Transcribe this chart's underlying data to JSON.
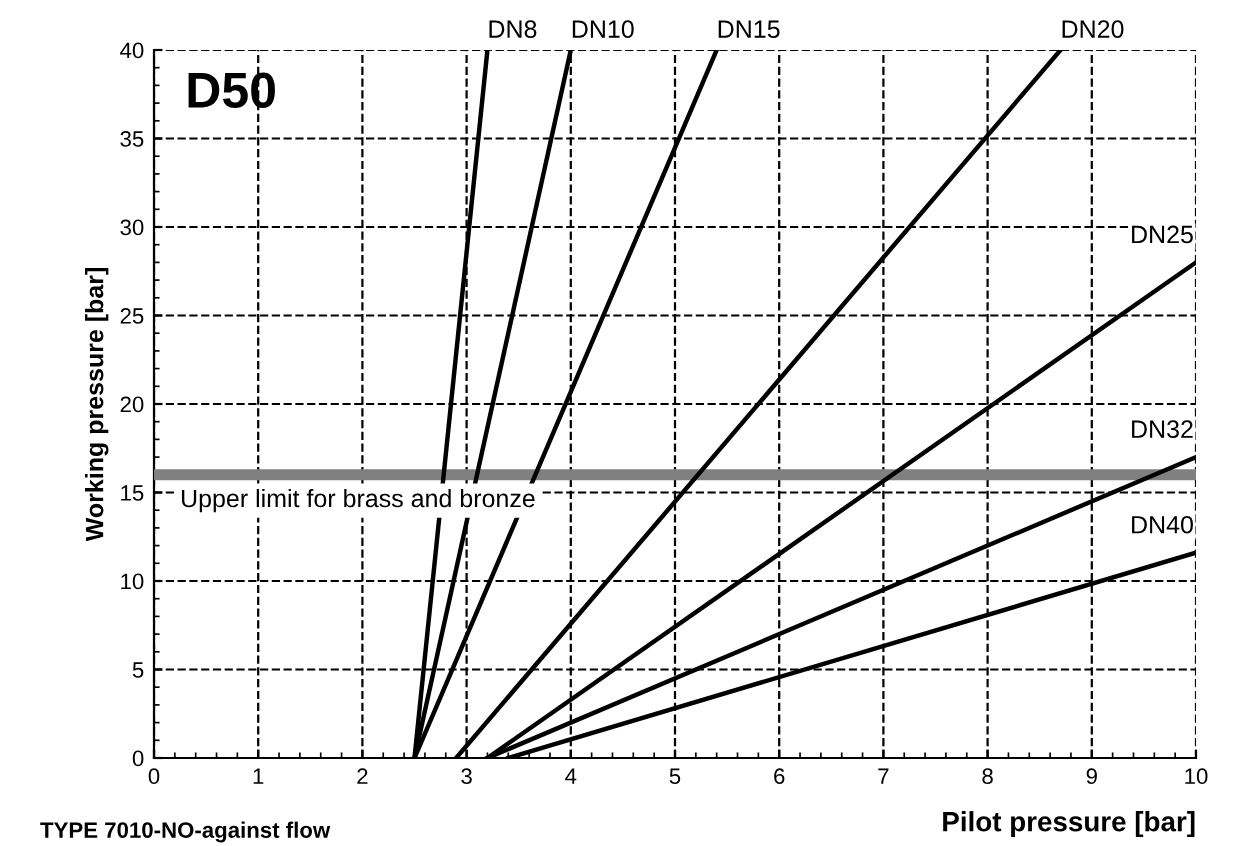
{
  "chart_data": {
    "type": "line",
    "xlabel": "Pilot pressure [bar]",
    "ylabel": "Working pressure [bar]",
    "xlim": [
      0,
      10
    ],
    "ylim": [
      0,
      40
    ],
    "xticks": [
      0,
      1,
      2,
      3,
      4,
      5,
      6,
      7,
      8,
      9,
      10
    ],
    "yticks": [
      0,
      5,
      10,
      15,
      20,
      25,
      30,
      35,
      40
    ],
    "grid": true,
    "legend": false,
    "marker": "none",
    "line_style": "solid",
    "series": [
      {
        "name": "DN8",
        "color": "#000000",
        "x": [
          2.5,
          3.2
        ],
        "values": [
          0,
          40
        ]
      },
      {
        "name": "DN10",
        "color": "#000000",
        "x": [
          2.5,
          4.0
        ],
        "values": [
          0,
          40
        ]
      },
      {
        "name": "DN15",
        "color": "#000000",
        "x": [
          2.5,
          5.4
        ],
        "values": [
          0,
          40
        ]
      },
      {
        "name": "DN20",
        "color": "#000000",
        "x": [
          2.9,
          8.7
        ],
        "values": [
          0,
          40
        ]
      },
      {
        "name": "DN25",
        "color": "#000000",
        "x": [
          3.2,
          10
        ],
        "values": [
          0,
          28
        ]
      },
      {
        "name": "DN32",
        "color": "#000000",
        "x": [
          3.2,
          10
        ],
        "values": [
          0,
          17
        ]
      },
      {
        "name": "DN40",
        "color": "#000000",
        "x": [
          3.4,
          10
        ],
        "values": [
          0,
          11.6
        ]
      }
    ],
    "ref_lines": [
      {
        "axis": "y",
        "value": 16,
        "label": "Upper limit for brass and bronze",
        "color": "#808080"
      }
    ],
    "annotations": [
      "D50",
      "TYPE 7010-NO-against flow"
    ]
  }
}
